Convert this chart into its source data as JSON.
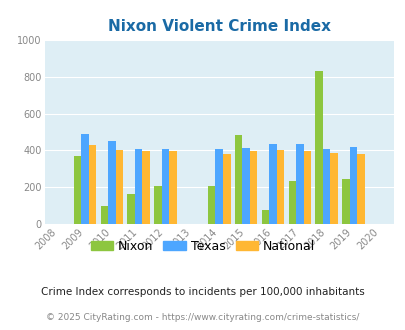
{
  "title": "Nixon Violent Crime Index",
  "subtitle": "Crime Index corresponds to incidents per 100,000 inhabitants",
  "footer": "© 2025 CityRating.com - https://www.cityrating.com/crime-statistics/",
  "years": [
    2008,
    2009,
    2010,
    2011,
    2012,
    2013,
    2014,
    2015,
    2016,
    2017,
    2018,
    2019,
    2020
  ],
  "data_years": [
    2009,
    2010,
    2011,
    2012,
    2014,
    2015,
    2016,
    2017,
    2018,
    2019
  ],
  "nixon": [
    370,
    100,
    165,
    207,
    207,
    483,
    80,
    235,
    830,
    248
  ],
  "texas": [
    488,
    452,
    407,
    407,
    407,
    413,
    435,
    437,
    410,
    418
  ],
  "national": [
    430,
    405,
    397,
    397,
    383,
    395,
    401,
    397,
    385,
    383
  ],
  "nixon_color": "#8dc63f",
  "texas_color": "#4da6ff",
  "national_color": "#ffb733",
  "plot_bg": "#deeef5",
  "ylim": [
    0,
    1000
  ],
  "yticks": [
    0,
    200,
    400,
    600,
    800,
    1000
  ],
  "title_color": "#1a6aa5",
  "subtitle_color": "#222222",
  "footer_color": "#888888",
  "bar_width": 0.28
}
